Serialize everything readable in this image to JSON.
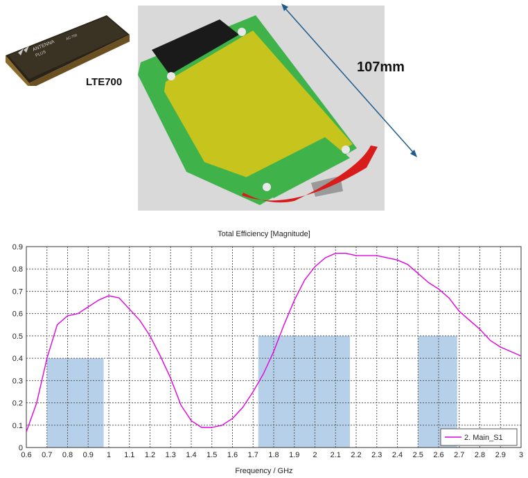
{
  "figure": {
    "chip_caption": "LTE700",
    "dimension_label": "107mm",
    "chip_marking": [
      "ANTENNA",
      "PLUS",
      "AC-700"
    ]
  },
  "chart_data": {
    "type": "line",
    "title": "Total Efficiency [Magnitude]",
    "xlabel": "Frequency / GHz",
    "ylabel": "",
    "xlim": [
      0.6,
      3.0
    ],
    "ylim": [
      0,
      0.9
    ],
    "grid": true,
    "legend_position": "bottom-right",
    "x_ticks": [
      "0.6",
      "0.7",
      "0.8",
      "0.9",
      "1",
      "1.1",
      "1.2",
      "1.3",
      "1.4",
      "1.5",
      "1.6",
      "1.7",
      "1.8",
      "1.9",
      "2",
      "2.1",
      "2.2",
      "2.3",
      "2.4",
      "2.5",
      "2.6",
      "2.7",
      "2.8",
      "2.9",
      "3"
    ],
    "y_ticks": [
      "0",
      "0.1",
      "0.2",
      "0.3",
      "0.4",
      "0.5",
      "0.6",
      "0.7",
      "0.8",
      "0.9"
    ],
    "series": [
      {
        "name": "2. Main_S1",
        "color": "#e000e0",
        "x": [
          0.6,
          0.65,
          0.7,
          0.75,
          0.8,
          0.85,
          0.9,
          0.95,
          1.0,
          1.05,
          1.1,
          1.15,
          1.2,
          1.25,
          1.3,
          1.35,
          1.4,
          1.45,
          1.5,
          1.55,
          1.6,
          1.65,
          1.7,
          1.75,
          1.8,
          1.85,
          1.9,
          1.95,
          2.0,
          2.05,
          2.1,
          2.15,
          2.2,
          2.25,
          2.3,
          2.35,
          2.4,
          2.45,
          2.5,
          2.55,
          2.6,
          2.65,
          2.7,
          2.75,
          2.8,
          2.85,
          2.9,
          2.95,
          3.0
        ],
        "values": [
          0.07,
          0.2,
          0.4,
          0.55,
          0.59,
          0.6,
          0.63,
          0.66,
          0.68,
          0.67,
          0.62,
          0.57,
          0.5,
          0.41,
          0.31,
          0.19,
          0.12,
          0.09,
          0.09,
          0.1,
          0.13,
          0.18,
          0.25,
          0.33,
          0.43,
          0.55,
          0.66,
          0.75,
          0.81,
          0.85,
          0.87,
          0.87,
          0.86,
          0.86,
          0.86,
          0.85,
          0.84,
          0.82,
          0.78,
          0.74,
          0.71,
          0.67,
          0.61,
          0.57,
          0.53,
          0.48,
          0.45,
          0.43,
          0.41
        ]
      }
    ],
    "bands": [
      {
        "x_start": 0.7,
        "x_end": 0.975,
        "value": 0.4
      },
      {
        "x_start": 1.725,
        "x_end": 2.17,
        "value": 0.5
      },
      {
        "x_start": 2.5,
        "x_end": 2.69,
        "value": 0.5
      }
    ],
    "colors": {
      "band": "#b5d0e8",
      "grid": "#555555",
      "line": "#e000e0"
    }
  }
}
